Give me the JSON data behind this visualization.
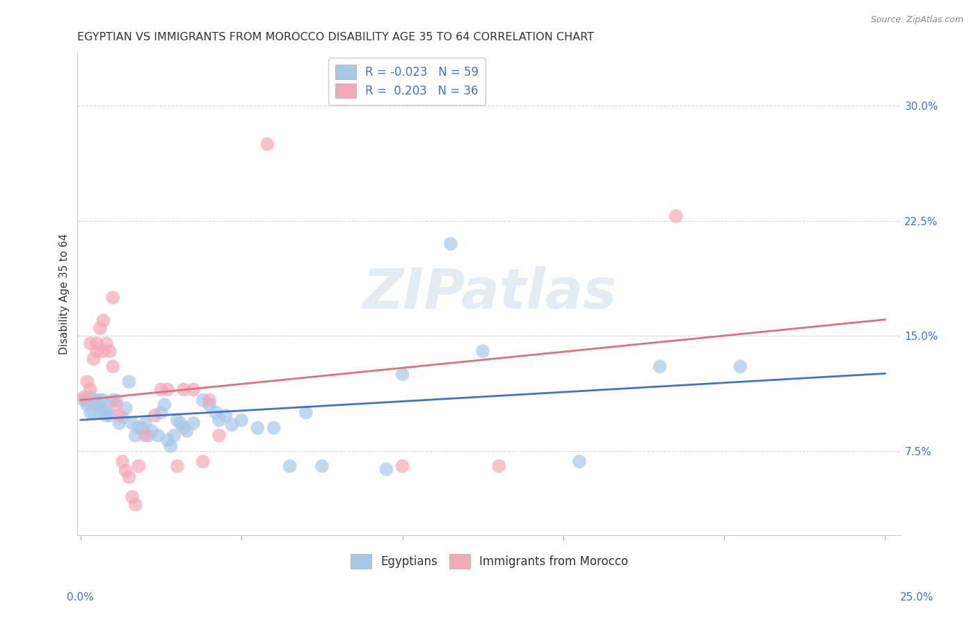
{
  "title": "EGYPTIAN VS IMMIGRANTS FROM MOROCCO DISABILITY AGE 35 TO 64 CORRELATION CHART",
  "source": "Source: ZipAtlas.com",
  "ylabel": "Disability Age 35 to 64",
  "ytick_labels": [
    "7.5%",
    "15.0%",
    "22.5%",
    "30.0%"
  ],
  "ytick_values": [
    0.075,
    0.15,
    0.225,
    0.3
  ],
  "xlim": [
    -0.001,
    0.255
  ],
  "ylim": [
    0.02,
    0.335
  ],
  "watermark": "ZIPatlas",
  "blue_color": "#a8c8e8",
  "pink_color": "#f4a8b8",
  "blue_line_color": "#4472c4",
  "pink_line_color": "#e07080",
  "blue_points": [
    [
      0.001,
      0.108
    ],
    [
      0.002,
      0.108
    ],
    [
      0.002,
      0.105
    ],
    [
      0.003,
      0.11
    ],
    [
      0.003,
      0.1
    ],
    [
      0.004,
      0.108
    ],
    [
      0.004,
      0.1
    ],
    [
      0.005,
      0.108
    ],
    [
      0.005,
      0.105
    ],
    [
      0.006,
      0.108
    ],
    [
      0.006,
      0.1
    ],
    [
      0.007,
      0.108
    ],
    [
      0.007,
      0.102
    ],
    [
      0.008,
      0.1
    ],
    [
      0.008,
      0.098
    ],
    [
      0.009,
      0.098
    ],
    [
      0.01,
      0.108
    ],
    [
      0.011,
      0.108
    ],
    [
      0.012,
      0.093
    ],
    [
      0.013,
      0.097
    ],
    [
      0.014,
      0.103
    ],
    [
      0.015,
      0.12
    ],
    [
      0.016,
      0.093
    ],
    [
      0.017,
      0.085
    ],
    [
      0.018,
      0.09
    ],
    [
      0.019,
      0.09
    ],
    [
      0.02,
      0.093
    ],
    [
      0.021,
      0.085
    ],
    [
      0.022,
      0.088
    ],
    [
      0.024,
      0.085
    ],
    [
      0.025,
      0.1
    ],
    [
      0.026,
      0.105
    ],
    [
      0.027,
      0.082
    ],
    [
      0.028,
      0.078
    ],
    [
      0.029,
      0.085
    ],
    [
      0.03,
      0.095
    ],
    [
      0.031,
      0.093
    ],
    [
      0.032,
      0.09
    ],
    [
      0.033,
      0.088
    ],
    [
      0.035,
      0.093
    ],
    [
      0.038,
      0.108
    ],
    [
      0.04,
      0.105
    ],
    [
      0.042,
      0.1
    ],
    [
      0.043,
      0.095
    ],
    [
      0.045,
      0.098
    ],
    [
      0.047,
      0.092
    ],
    [
      0.05,
      0.095
    ],
    [
      0.055,
      0.09
    ],
    [
      0.06,
      0.09
    ],
    [
      0.065,
      0.065
    ],
    [
      0.07,
      0.1
    ],
    [
      0.075,
      0.065
    ],
    [
      0.095,
      0.063
    ],
    [
      0.1,
      0.125
    ],
    [
      0.115,
      0.21
    ],
    [
      0.125,
      0.14
    ],
    [
      0.155,
      0.068
    ],
    [
      0.18,
      0.13
    ],
    [
      0.205,
      0.13
    ]
  ],
  "pink_points": [
    [
      0.001,
      0.11
    ],
    [
      0.002,
      0.12
    ],
    [
      0.003,
      0.115
    ],
    [
      0.003,
      0.145
    ],
    [
      0.004,
      0.135
    ],
    [
      0.005,
      0.145
    ],
    [
      0.005,
      0.14
    ],
    [
      0.006,
      0.155
    ],
    [
      0.007,
      0.14
    ],
    [
      0.007,
      0.16
    ],
    [
      0.008,
      0.145
    ],
    [
      0.009,
      0.14
    ],
    [
      0.01,
      0.13
    ],
    [
      0.01,
      0.175
    ],
    [
      0.011,
      0.105
    ],
    [
      0.012,
      0.098
    ],
    [
      0.013,
      0.068
    ],
    [
      0.014,
      0.062
    ],
    [
      0.015,
      0.058
    ],
    [
      0.016,
      0.045
    ],
    [
      0.017,
      0.04
    ],
    [
      0.018,
      0.065
    ],
    [
      0.02,
      0.085
    ],
    [
      0.023,
      0.098
    ],
    [
      0.025,
      0.115
    ],
    [
      0.027,
      0.115
    ],
    [
      0.03,
      0.065
    ],
    [
      0.032,
      0.115
    ],
    [
      0.035,
      0.115
    ],
    [
      0.038,
      0.068
    ],
    [
      0.04,
      0.108
    ],
    [
      0.043,
      0.085
    ],
    [
      0.058,
      0.275
    ],
    [
      0.1,
      0.065
    ],
    [
      0.13,
      0.065
    ],
    [
      0.185,
      0.228
    ]
  ]
}
